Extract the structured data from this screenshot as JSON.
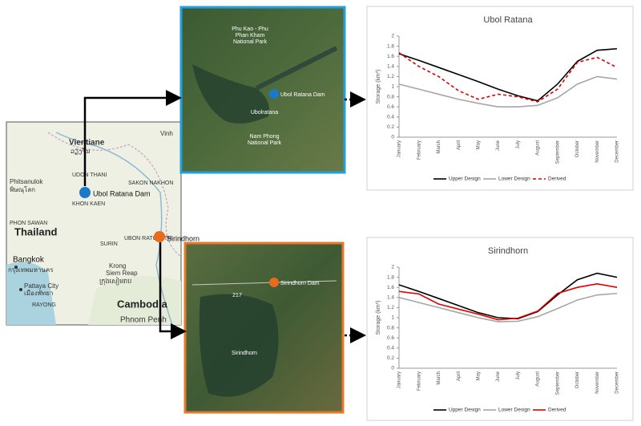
{
  "map": {
    "labels": [
      "Vinh",
      "Vientiane",
      "ວຽງຈັນ",
      "UDON THANI",
      "Phitsanulok",
      "พิษณุโลก",
      "Ubol Ratana Dam",
      "KHON KAEN",
      "SAKON NAKHON",
      "PHON SAWAN",
      "Thailand",
      "SURIN",
      "UBON RATCHATH",
      "Sirindhorn",
      "Bangkok",
      "กรุงเทพมหานคร",
      "Krong",
      "Siem Reap",
      "ក្រុងសៀមរាប",
      "Pattaya City",
      "เมืองพัทยา",
      "RAYONG",
      "Cambodia",
      "Phnom Penh"
    ]
  },
  "satellite": {
    "top_labels": [
      "Phu Kao - Phu",
      "Phan Kham",
      "National Park",
      "Ubol Ratana Dam",
      "Ubolratana",
      "Nam Phong",
      "National Park"
    ],
    "bottom_labels": [
      "Sirindhorn Dam",
      "217",
      "Sirindhorn"
    ]
  },
  "chart_data": [
    {
      "type": "line",
      "title": "Ubol Ratana",
      "y_label": "Storage (km³)",
      "categories": [
        "January",
        "February",
        "March",
        "April",
        "May",
        "June",
        "July",
        "August",
        "September",
        "October",
        "November",
        "December"
      ],
      "ylim": [
        0,
        2
      ],
      "yticks": [
        0,
        0.2,
        0.4,
        0.6,
        0.8,
        1,
        1.2,
        1.4,
        1.6,
        1.8,
        2
      ],
      "series": [
        {
          "name": "Upper Design",
          "color": "#000000",
          "style": "solid",
          "values": [
            1.65,
            1.52,
            1.38,
            1.24,
            1.1,
            0.95,
            0.82,
            0.72,
            1.05,
            1.5,
            1.72,
            1.75
          ]
        },
        {
          "name": "Lower Design",
          "color": "#a6a6a6",
          "style": "solid",
          "values": [
            1.05,
            0.95,
            0.85,
            0.75,
            0.67,
            0.6,
            0.6,
            0.63,
            0.78,
            1.05,
            1.2,
            1.15
          ]
        },
        {
          "name": "Derived",
          "color": "#e00000",
          "style": "dashed",
          "values": [
            1.67,
            1.4,
            1.2,
            0.92,
            0.75,
            0.85,
            0.8,
            0.7,
            0.95,
            1.48,
            1.58,
            1.38
          ]
        }
      ]
    },
    {
      "type": "line",
      "title": "Sirindhorn",
      "y_label": "Storage (km³)",
      "categories": [
        "January",
        "February",
        "March",
        "April",
        "May",
        "June",
        "July",
        "August",
        "September",
        "October",
        "November",
        "December"
      ],
      "ylim": [
        0,
        2
      ],
      "yticks": [
        0,
        0.2,
        0.4,
        0.6,
        0.8,
        1,
        1.2,
        1.4,
        1.6,
        1.8,
        2
      ],
      "series": [
        {
          "name": "Upper Design",
          "color": "#000000",
          "style": "solid",
          "values": [
            1.65,
            1.52,
            1.38,
            1.24,
            1.1,
            1.0,
            0.98,
            1.12,
            1.45,
            1.75,
            1.88,
            1.8
          ]
        },
        {
          "name": "Lower Design",
          "color": "#a6a6a6",
          "style": "solid",
          "values": [
            1.4,
            1.3,
            1.2,
            1.1,
            1.0,
            0.92,
            0.93,
            1.02,
            1.18,
            1.35,
            1.45,
            1.48
          ]
        },
        {
          "name": "Derived",
          "color": "#e00000",
          "style": "solid",
          "values": [
            1.52,
            1.47,
            1.27,
            1.17,
            1.07,
            0.96,
            0.99,
            1.13,
            1.48,
            1.6,
            1.67,
            1.6
          ]
        }
      ]
    }
  ]
}
